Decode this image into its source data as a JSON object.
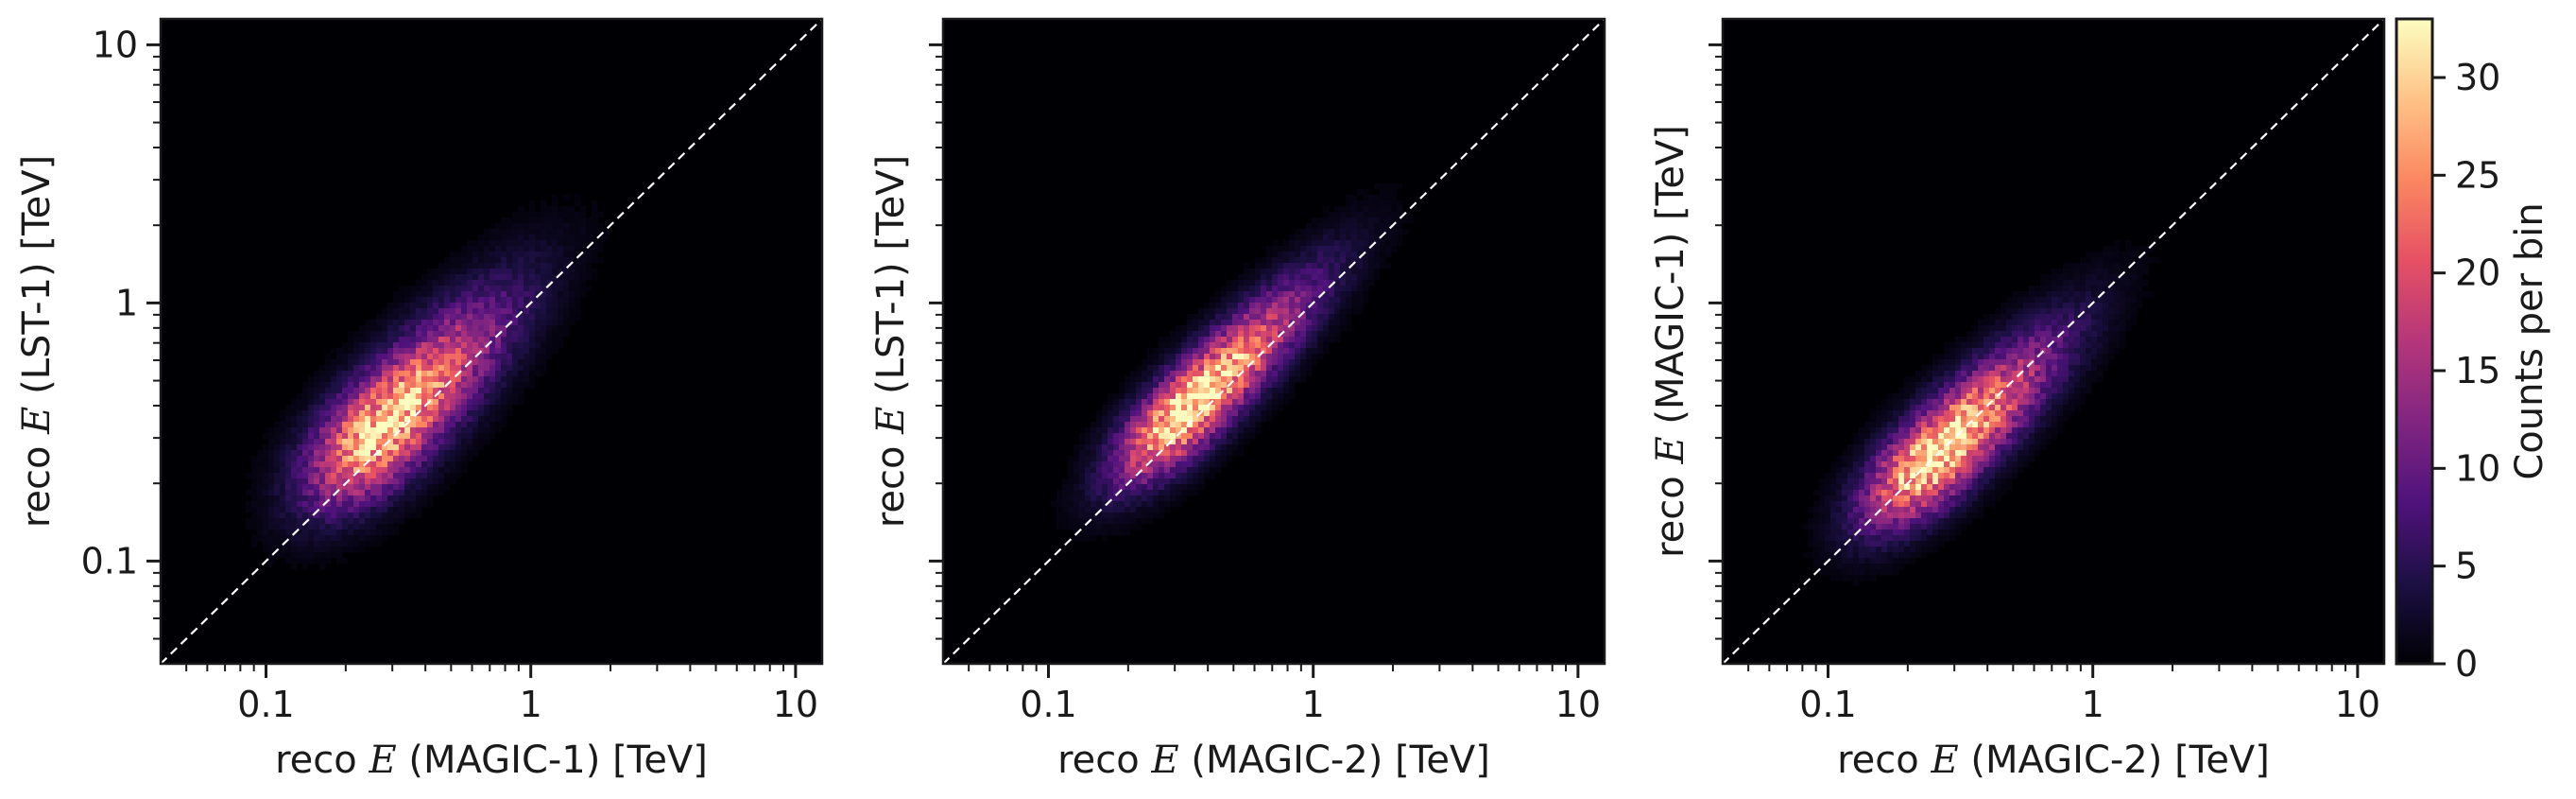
{
  "chart_data": [
    {
      "type": "heatmap",
      "xlabel": {
        "pre": "reco ",
        "math": "E",
        "post": " (MAGIC-1) [TeV]"
      },
      "ylabel": {
        "pre": "reco ",
        "math": "E",
        "post": " (LST-1) [TeV]"
      },
      "x_scale": "log",
      "y_scale": "log",
      "xlim": [
        0.04,
        12.6
      ],
      "ylim": [
        0.04,
        12.6
      ],
      "x_ticks": [
        {
          "value": 0.1,
          "label": "0.1"
        },
        {
          "value": 1,
          "label": "1"
        },
        {
          "value": 10,
          "label": "10"
        }
      ],
      "y_ticks": [
        {
          "value": 0.1,
          "label": "0.1"
        },
        {
          "value": 1,
          "label": "1"
        },
        {
          "value": 10,
          "label": "10"
        }
      ],
      "show_y_tick_labels": true,
      "reference_line": "y = x",
      "density": {
        "peak_x": 0.27,
        "peak_y": 0.32,
        "peak_counts": 31,
        "spread_major_decades": 0.42,
        "spread_minor_decades": 0.12,
        "tilt_deg": 47
      }
    },
    {
      "type": "heatmap",
      "xlabel": {
        "pre": "reco ",
        "math": "E",
        "post": " (MAGIC-2) [TeV]"
      },
      "ylabel": {
        "pre": "reco ",
        "math": "E",
        "post": " (LST-1) [TeV]"
      },
      "x_scale": "log",
      "y_scale": "log",
      "xlim": [
        0.04,
        12.6
      ],
      "ylim": [
        0.04,
        12.6
      ],
      "x_ticks": [
        {
          "value": 0.1,
          "label": "0.1"
        },
        {
          "value": 1,
          "label": "1"
        },
        {
          "value": 10,
          "label": "10"
        }
      ],
      "y_ticks": [
        {
          "value": 0.1,
          "label": ""
        },
        {
          "value": 1,
          "label": ""
        },
        {
          "value": 10,
          "label": ""
        }
      ],
      "show_y_tick_labels": false,
      "reference_line": "y = x",
      "density": {
        "peak_x": 0.33,
        "peak_y": 0.38,
        "peak_counts": 33,
        "spread_major_decades": 0.42,
        "spread_minor_decades": 0.09,
        "tilt_deg": 46
      }
    },
    {
      "type": "heatmap",
      "xlabel": {
        "pre": "reco ",
        "math": "E",
        "post": " (MAGIC-2) [TeV]"
      },
      "ylabel": {
        "pre": "reco ",
        "math": "E",
        "post": " (MAGIC-1) [TeV]"
      },
      "x_scale": "log",
      "y_scale": "log",
      "xlim": [
        0.04,
        12.6
      ],
      "ylim": [
        0.04,
        12.6
      ],
      "x_ticks": [
        {
          "value": 0.1,
          "label": "0.1"
        },
        {
          "value": 1,
          "label": "1"
        },
        {
          "value": 10,
          "label": "10"
        }
      ],
      "y_ticks": [
        {
          "value": 0.1,
          "label": ""
        },
        {
          "value": 1,
          "label": ""
        },
        {
          "value": 10,
          "label": ""
        }
      ],
      "show_y_tick_labels": false,
      "reference_line": "y = x",
      "density": {
        "peak_x": 0.25,
        "peak_y": 0.25,
        "peak_counts": 33,
        "spread_major_decades": 0.4,
        "spread_minor_decades": 0.1,
        "tilt_deg": 45
      }
    }
  ],
  "colorbar": {
    "label": "Counts per bin",
    "colormap": "magma",
    "range": [
      0,
      33
    ],
    "ticks": [
      {
        "value": 0,
        "label": "0"
      },
      {
        "value": 5,
        "label": "5"
      },
      {
        "value": 10,
        "label": "10"
      },
      {
        "value": 15,
        "label": "15"
      },
      {
        "value": 20,
        "label": "20"
      },
      {
        "value": 25,
        "label": "25"
      },
      {
        "value": 30,
        "label": "30"
      }
    ]
  },
  "colors": {
    "background": "#000004",
    "reference_line": "#ffffff",
    "axis": "#1a1a1a"
  }
}
